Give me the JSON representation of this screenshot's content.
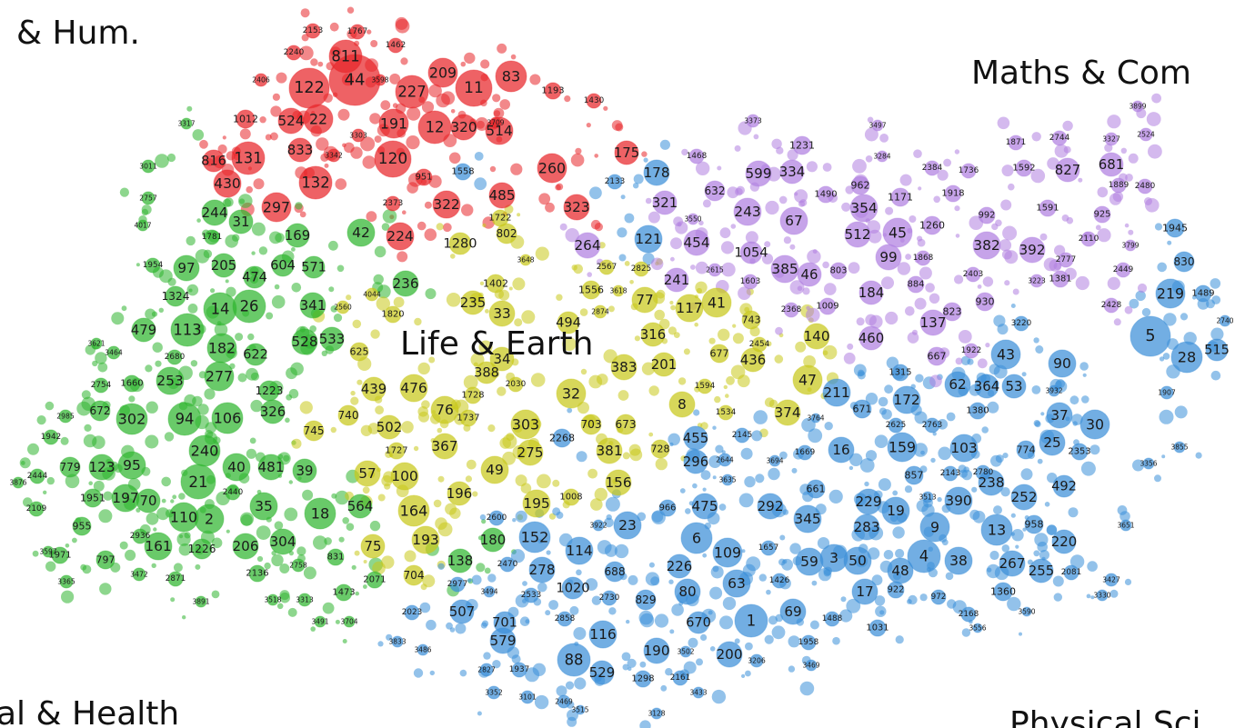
{
  "regions": [
    "& Hum.",
    "Maths & Com",
    "Life & Earth",
    "al & Health",
    "Physical Sci"
  ],
  "clusters": [
    {
      "color": "#e8262a",
      "labels": [
        "44",
        "811",
        "122",
        "22",
        "524",
        "1012",
        "131",
        "816",
        "430",
        "833",
        "132",
        "297",
        "191",
        "120",
        "227",
        "209",
        "11",
        "83",
        "12",
        "320",
        "514",
        "260",
        "485",
        "322",
        "323",
        "224",
        "2153",
        "1767",
        "2240",
        "1462",
        "2406",
        "3598",
        "3303",
        "3342",
        "951",
        "2373",
        "1193",
        "1430",
        "175",
        "3709"
      ]
    },
    {
      "color": "#2fb52f",
      "labels": [
        "244",
        "31",
        "1781",
        "169",
        "42",
        "604",
        "571",
        "97",
        "205",
        "474",
        "1324",
        "14",
        "26",
        "341",
        "479",
        "113",
        "182",
        "622",
        "2680",
        "277",
        "253",
        "1660",
        "2754",
        "1223",
        "672",
        "302",
        "94",
        "106",
        "326",
        "240",
        "779",
        "123",
        "95",
        "21",
        "40",
        "481",
        "39",
        "1951",
        "197",
        "70",
        "110",
        "2",
        "35",
        "18",
        "955",
        "161",
        "1226",
        "206",
        "304",
        "1971",
        "797",
        "2136",
        "2871",
        "564",
        "831",
        "2071",
        "1473",
        "3313",
        "3518",
        "236",
        "2444",
        "2109",
        "3365",
        "1942",
        "2985",
        "3621",
        "3464",
        "4017",
        "1954",
        "2936",
        "3472",
        "2440",
        "2758",
        "3891",
        "3491",
        "3704",
        "3876",
        "3597",
        "3011",
        "2757",
        "3317",
        "528",
        "533",
        "138",
        "180"
      ]
    },
    {
      "color": "#c8c81a",
      "labels": [
        "235",
        "33",
        "494",
        "34",
        "388",
        "316",
        "383",
        "201",
        "117",
        "41",
        "77",
        "625",
        "439",
        "476",
        "32",
        "1728",
        "2030",
        "76",
        "1737",
        "303",
        "703",
        "673",
        "740",
        "502",
        "745",
        "367",
        "275",
        "381",
        "1727",
        "57",
        "100",
        "49",
        "156",
        "196",
        "1008",
        "195",
        "164",
        "75",
        "193",
        "704",
        "8",
        "1534",
        "374",
        "140",
        "47",
        "436",
        "677",
        "743",
        "2454",
        "1594",
        "728",
        "1820",
        "2560",
        "4044",
        "1280",
        "802",
        "1722",
        "1402",
        "1556",
        "3648",
        "2874",
        "3618",
        "2567",
        "2825"
      ]
    },
    {
      "color": "#3b8fd8",
      "labels": [
        "5",
        "28",
        "515",
        "219",
        "1489",
        "830",
        "1945",
        "90",
        "43",
        "53",
        "364",
        "62",
        "172",
        "211",
        "671",
        "37",
        "30",
        "25",
        "774",
        "2353",
        "103",
        "159",
        "16",
        "1669",
        "857",
        "2143",
        "2780",
        "238",
        "492",
        "252",
        "390",
        "3513",
        "19",
        "229",
        "283",
        "9",
        "13",
        "958",
        "220",
        "345",
        "661",
        "292",
        "475",
        "966",
        "6",
        "109",
        "1657",
        "59",
        "3",
        "50",
        "48",
        "4",
        "38",
        "267",
        "255",
        "2081",
        "17",
        "922",
        "1360",
        "972",
        "2168",
        "1031",
        "63",
        "80",
        "226",
        "1426",
        "69",
        "1488",
        "1",
        "670",
        "829",
        "2730",
        "1020",
        "688",
        "114",
        "23",
        "152",
        "278",
        "2470",
        "2533",
        "3494",
        "507",
        "2023",
        "701",
        "2858",
        "116",
        "579",
        "88",
        "529",
        "190",
        "3502",
        "200",
        "1958",
        "3469",
        "3206",
        "1298",
        "2161",
        "3433",
        "1937",
        "2827",
        "3352",
        "3101",
        "2469",
        "3515",
        "3128",
        "3833",
        "3486",
        "455",
        "2145",
        "296",
        "2644",
        "3694",
        "3635",
        "2268",
        "3922",
        "2600",
        "2977",
        "1380",
        "3220",
        "1907",
        "2740",
        "1315",
        "2625",
        "2763",
        "121",
        "178",
        "3330",
        "3427",
        "3590",
        "3556",
        "3651",
        "3356",
        "3855",
        "3932",
        "3764",
        "2133",
        "1558"
      ]
    },
    {
      "color": "#b07fe0",
      "labels": [
        "599",
        "334",
        "1231",
        "632",
        "321",
        "243",
        "67",
        "354",
        "962",
        "1490",
        "1171",
        "1918",
        "3284",
        "2384",
        "1736",
        "454",
        "1054",
        "512",
        "45",
        "1260",
        "99",
        "1868",
        "385",
        "46",
        "803",
        "184",
        "884",
        "1603",
        "2615",
        "241",
        "264",
        "3550",
        "1468",
        "3373",
        "3497",
        "1009",
        "2368",
        "137",
        "460",
        "667",
        "1922",
        "823",
        "930",
        "2403",
        "3223",
        "1381",
        "2777",
        "2449",
        "2428",
        "382",
        "392",
        "992",
        "1591",
        "925",
        "2110",
        "3799",
        "1592",
        "827",
        "681",
        "1889",
        "2480",
        "1871",
        "2744",
        "3327",
        "2524",
        "3899"
      ]
    }
  ]
}
